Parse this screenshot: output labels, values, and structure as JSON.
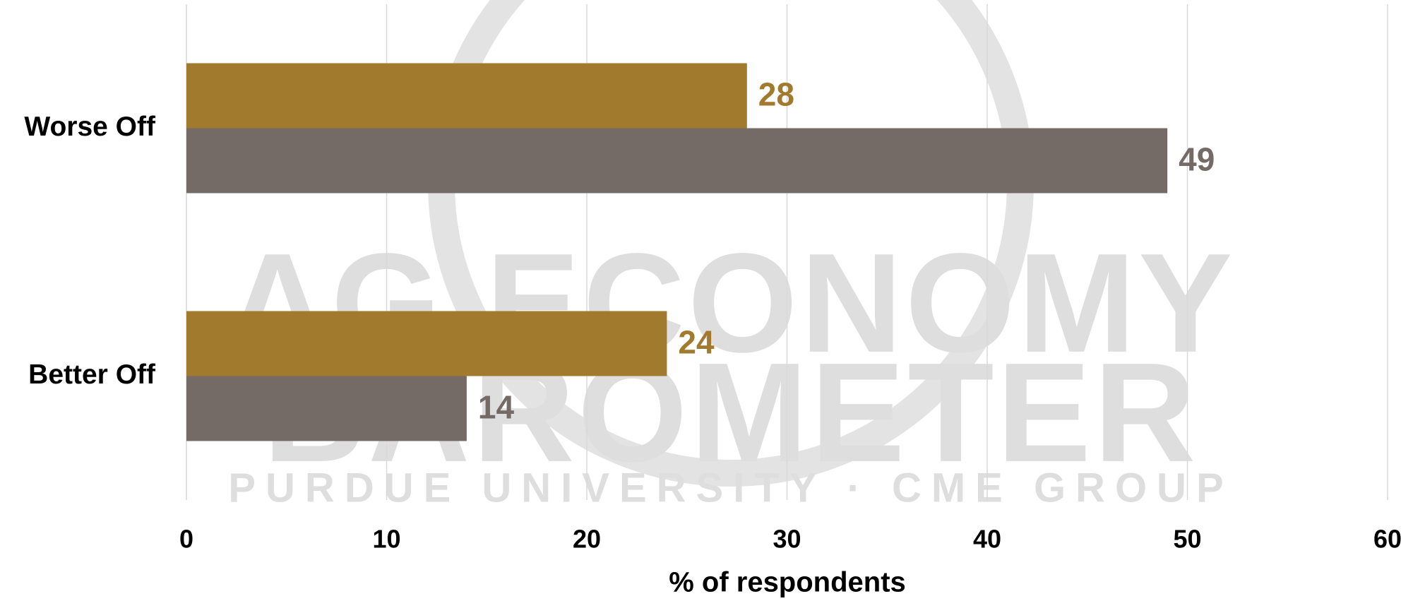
{
  "chart_data": {
    "type": "hbar",
    "categories": [
      "Worse Off",
      "Better Off"
    ],
    "series": [
      {
        "color": "#a27a2e",
        "values": [
          28,
          24
        ]
      },
      {
        "color": "#756b66",
        "values": [
          49,
          14
        ]
      }
    ],
    "xlim": [
      0,
      60
    ],
    "xticks": [
      0,
      10,
      20,
      30,
      40,
      50,
      60
    ],
    "grid": true,
    "x_label": "% of respondents",
    "watermark": [
      "AG ECONOMY",
      "BAROMETER",
      "PURDUE UNIVERSITY · CME GROUP"
    ]
  }
}
